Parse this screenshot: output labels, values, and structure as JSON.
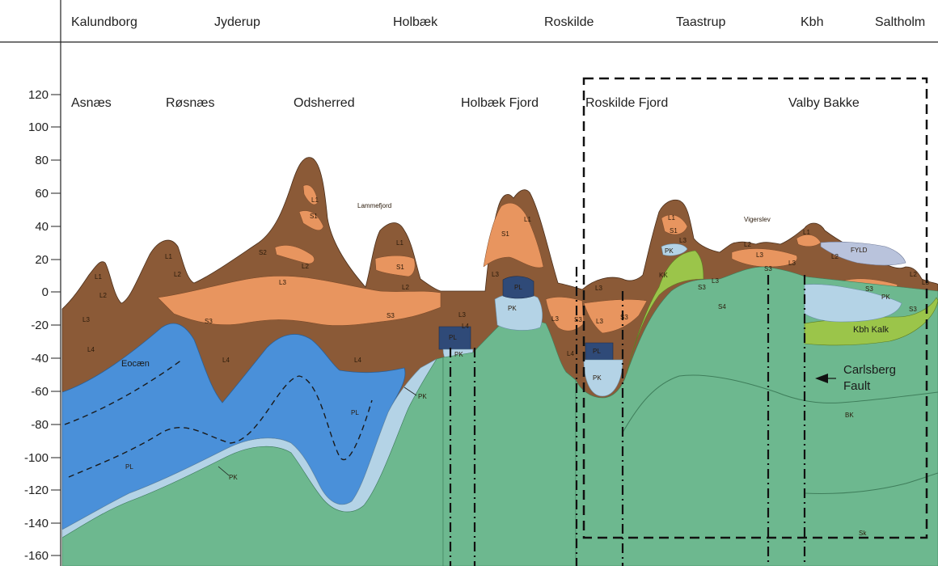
{
  "towns": [
    "Kalundborg",
    "Jyderup",
    "Holbæk",
    "Roskilde",
    "Taastrup",
    "Kbh",
    "Saltholm"
  ],
  "places": [
    "Asnæs",
    "Røsnæs",
    "Odsherred",
    "Holbæk Fjord",
    "Roskilde Fjord",
    "Valby Bakke"
  ],
  "y_axis": {
    "ticks": [
      "120",
      "100",
      "80",
      "60",
      "40",
      "20",
      "0",
      "-20",
      "-40",
      "-60",
      "-80",
      "-100",
      "-120",
      "-140",
      "-160"
    ]
  },
  "small_labels": {
    "lammefjord": "Lammefjord",
    "vigerslev": "Vigerslev",
    "fyld": "FYLD"
  },
  "units": {
    "L1": "L1",
    "L2": "L2",
    "L3": "L3",
    "L4": "L4",
    "S1": "S1",
    "S2": "S2",
    "S3": "S3",
    "S4": "S4",
    "PL": "PL",
    "PK": "PK",
    "KK": "KK",
    "BK": "BK",
    "Sk": "Sk"
  },
  "formations": {
    "eocaen": "Eocæn",
    "kbh_kalk": "Kbh Kalk"
  },
  "annotation": {
    "line1": "Carlsberg",
    "line2": "Fault"
  },
  "colors": {
    "brown_L": "#8b5a37",
    "orange_S": "#e8955f",
    "blue_PL": "#4a90d9",
    "lightblue_PK": "#b4d3e6",
    "green_bedrock": "#6db88f",
    "lime_KK": "#9bc54a",
    "navy": "#2f4a78",
    "fyld": "#b9c3dc"
  }
}
